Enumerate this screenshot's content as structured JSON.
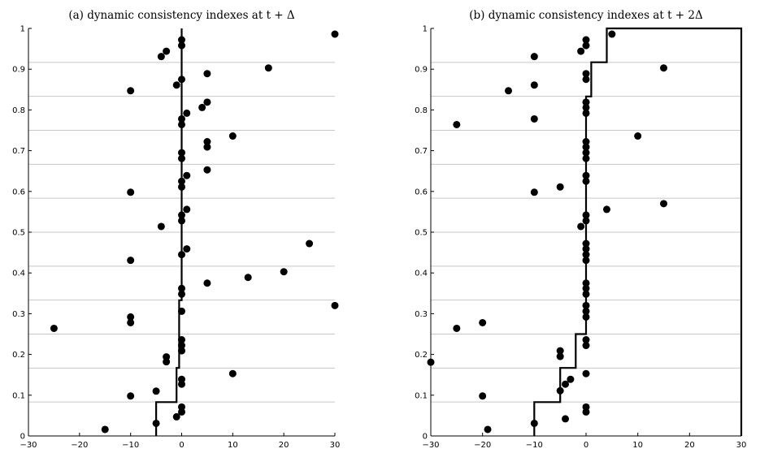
{
  "chart_data": [
    {
      "type": "scatter",
      "title": "(a) dynamic consistency indexes at t + Δ",
      "xlim": [
        -30,
        30
      ],
      "ylim": [
        0,
        1
      ],
      "xticks": [
        -30,
        -20,
        -10,
        0,
        10,
        20,
        30
      ],
      "yticks": [
        0,
        0.1,
        0.2,
        0.3,
        0.4,
        0.5,
        0.6,
        0.7,
        0.8,
        0.9,
        1
      ],
      "ytick_labels": [
        "0",
        "0.1",
        "0.2",
        "0.3",
        "0.4",
        "0.5",
        "0.6",
        "0.7",
        "0.8",
        "0.9",
        "1"
      ],
      "xtick_labels": [
        "−30",
        "−20",
        "−10",
        "0",
        "10",
        "20",
        "30"
      ],
      "hlines": [
        0.0833,
        0.1667,
        0.25,
        0.3333,
        0.4167,
        0.5,
        0.5833,
        0.6667,
        0.75,
        0.8333,
        0.9167
      ],
      "step_line": [
        [
          -5,
          0
        ],
        [
          -5,
          0.083
        ],
        [
          -1,
          0.083
        ],
        [
          -1,
          0.167
        ],
        [
          -0.5,
          0.167
        ],
        [
          -0.5,
          0.333
        ],
        [
          0,
          0.333
        ],
        [
          0,
          1
        ]
      ],
      "points": [
        [
          -15,
          0.016
        ],
        [
          -5,
          0.031
        ],
        [
          -1,
          0.047
        ],
        [
          0,
          0.059
        ],
        [
          0,
          0.071
        ],
        [
          -10,
          0.098
        ],
        [
          -5,
          0.11
        ],
        [
          0,
          0.127
        ],
        [
          0,
          0.139
        ],
        [
          10,
          0.153
        ],
        [
          -3,
          0.182
        ],
        [
          -3,
          0.194
        ],
        [
          0,
          0.209
        ],
        [
          0,
          0.222
        ],
        [
          0,
          0.236
        ],
        [
          -25,
          0.264
        ],
        [
          -10,
          0.278
        ],
        [
          -10,
          0.292
        ],
        [
          0,
          0.306
        ],
        [
          30,
          0.32
        ],
        [
          0,
          0.348
        ],
        [
          0,
          0.362
        ],
        [
          5,
          0.375
        ],
        [
          13,
          0.389
        ],
        [
          20,
          0.403
        ],
        [
          -10,
          0.431
        ],
        [
          0,
          0.445
        ],
        [
          1,
          0.459
        ],
        [
          25,
          0.472
        ],
        [
          -4,
          0.514
        ],
        [
          0,
          0.528
        ],
        [
          0,
          0.542
        ],
        [
          1,
          0.556
        ],
        [
          -10,
          0.598
        ],
        [
          0,
          0.611
        ],
        [
          0,
          0.625
        ],
        [
          1,
          0.639
        ],
        [
          5,
          0.653
        ],
        [
          0,
          0.681
        ],
        [
          0,
          0.695
        ],
        [
          5,
          0.709
        ],
        [
          5,
          0.722
        ],
        [
          10,
          0.736
        ],
        [
          0,
          0.764
        ],
        [
          0,
          0.778
        ],
        [
          1,
          0.792
        ],
        [
          4,
          0.806
        ],
        [
          5,
          0.819
        ],
        [
          -10,
          0.847
        ],
        [
          -1,
          0.861
        ],
        [
          0,
          0.875
        ],
        [
          5,
          0.889
        ],
        [
          17,
          0.903
        ],
        [
          -4,
          0.931
        ],
        [
          -3,
          0.944
        ],
        [
          0,
          0.958
        ],
        [
          0,
          0.972
        ],
        [
          30,
          0.986
        ]
      ]
    },
    {
      "type": "scatter",
      "title": "(b) dynamic consistency indexes at t + 2Δ",
      "xlim": [
        -30,
        30
      ],
      "ylim": [
        0,
        1
      ],
      "xticks": [
        -30,
        -20,
        -10,
        0,
        10,
        20,
        30
      ],
      "yticks": [
        0,
        0.1,
        0.2,
        0.3,
        0.4,
        0.5,
        0.6,
        0.7,
        0.8,
        0.9,
        1
      ],
      "ytick_labels": [
        "0",
        "0.1",
        "0.2",
        "0.3",
        "0.4",
        "0.5",
        "0.6",
        "0.7",
        "0.8",
        "0.9",
        "1"
      ],
      "xtick_labels": [
        "−30",
        "−20",
        "−10",
        "0",
        "10",
        "20",
        "30"
      ],
      "hlines": [
        0.0833,
        0.1667,
        0.25,
        0.3333,
        0.4167,
        0.5,
        0.5833,
        0.6667,
        0.75,
        0.8333,
        0.9167
      ],
      "step_line": [
        [
          -10,
          0
        ],
        [
          -10,
          0.083
        ],
        [
          -5,
          0.083
        ],
        [
          -5,
          0.167
        ],
        [
          -2,
          0.167
        ],
        [
          -2,
          0.25
        ],
        [
          0,
          0.25
        ],
        [
          0,
          0.833
        ],
        [
          1,
          0.833
        ],
        [
          1,
          0.917
        ],
        [
          4,
          0.917
        ],
        [
          4,
          1
        ],
        [
          30,
          1
        ],
        [
          30,
          0
        ]
      ],
      "points": [
        [
          -19,
          0.016
        ],
        [
          -10,
          0.031
        ],
        [
          -4,
          0.042
        ],
        [
          0,
          0.059
        ],
        [
          0,
          0.071
        ],
        [
          -20,
          0.098
        ],
        [
          -5,
          0.111
        ],
        [
          -4,
          0.127
        ],
        [
          -3,
          0.139
        ],
        [
          0,
          0.153
        ],
        [
          -30,
          0.181
        ],
        [
          -5,
          0.195
        ],
        [
          -5,
          0.209
        ],
        [
          0,
          0.222
        ],
        [
          0,
          0.236
        ],
        [
          -25,
          0.264
        ],
        [
          -20,
          0.278
        ],
        [
          0,
          0.292
        ],
        [
          0,
          0.306
        ],
        [
          0,
          0.32
        ],
        [
          0,
          0.348
        ],
        [
          0,
          0.362
        ],
        [
          0,
          0.375
        ],
        [
          0,
          0.431
        ],
        [
          0,
          0.445
        ],
        [
          0,
          0.459
        ],
        [
          0,
          0.472
        ],
        [
          -1,
          0.514
        ],
        [
          0,
          0.528
        ],
        [
          0,
          0.542
        ],
        [
          4,
          0.556
        ],
        [
          15,
          0.57
        ],
        [
          -10,
          0.598
        ],
        [
          -5,
          0.611
        ],
        [
          0,
          0.625
        ],
        [
          0,
          0.639
        ],
        [
          0,
          0.681
        ],
        [
          0,
          0.695
        ],
        [
          0,
          0.709
        ],
        [
          0,
          0.722
        ],
        [
          10,
          0.736
        ],
        [
          -25,
          0.764
        ],
        [
          -10,
          0.778
        ],
        [
          0,
          0.792
        ],
        [
          0,
          0.806
        ],
        [
          0,
          0.819
        ],
        [
          -15,
          0.847
        ],
        [
          -10,
          0.861
        ],
        [
          0,
          0.875
        ],
        [
          0,
          0.889
        ],
        [
          15,
          0.903
        ],
        [
          -10,
          0.931
        ],
        [
          -1,
          0.944
        ],
        [
          0,
          0.958
        ],
        [
          0,
          0.972
        ],
        [
          5,
          0.986
        ]
      ]
    }
  ]
}
